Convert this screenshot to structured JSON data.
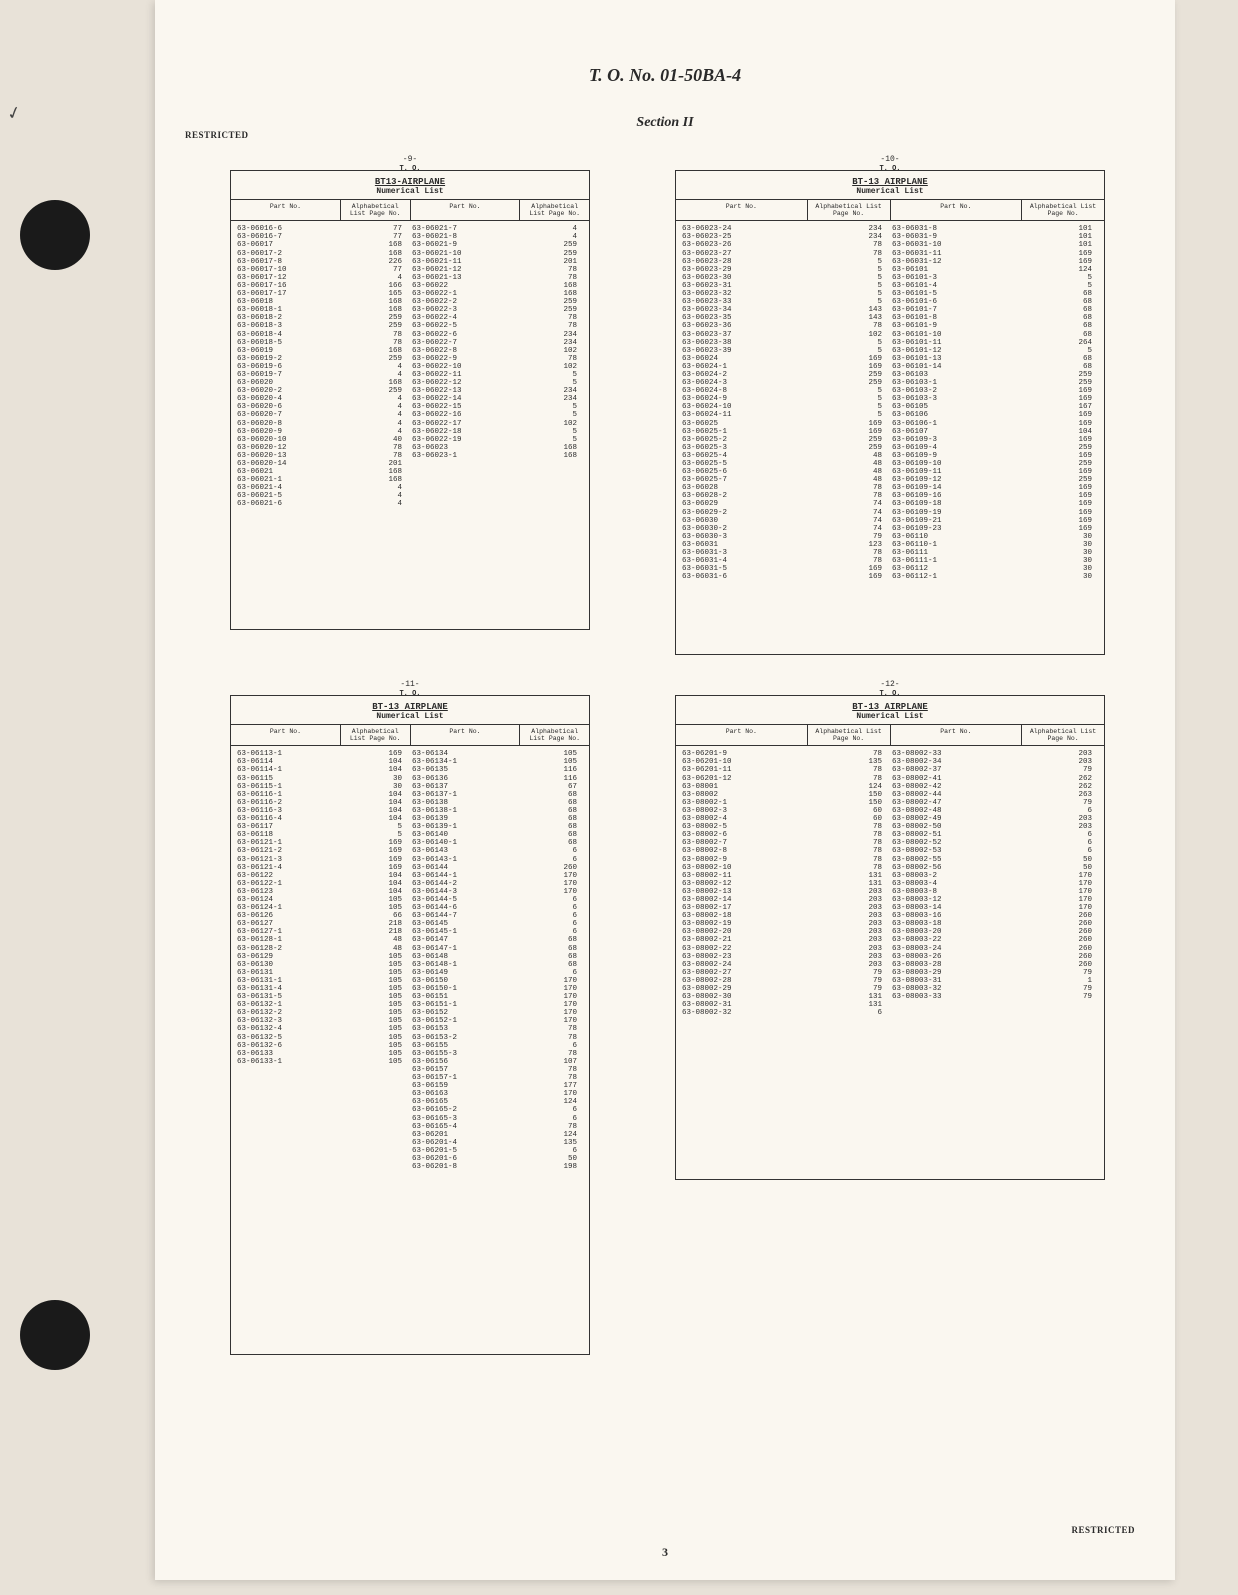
{
  "doc": {
    "title": "T. O. No. 01-50BA-4",
    "section": "Section II",
    "restricted": "RESTRICTED",
    "page_number": "3",
    "to_label": "T. O."
  },
  "colheads": {
    "part": "Part No.",
    "page": "Alphabetical\nList Page No."
  },
  "panels": {
    "tl": {
      "pagenum": "-9-",
      "title": "BT13-AIRPLANE",
      "subtitle": "Numerical List",
      "col1_parts": "63-06016-6\n63-06016-7\n63-06017\n63-06017-2\n63-06017-8\n63-06017-10\n63-06017-12\n63-06017-16\n63-06017-17\n63-06018\n63-06018-1\n63-06018-2\n63-06018-3\n63-06018-4\n63-06018-5\n63-06019\n63-06019-2\n63-06019-6\n63-06019-7\n63-06020\n63-06020-2\n63-06020-4\n63-06020-6\n63-06020-7\n63-06020-8\n63-06020-9\n63-06020-10\n63-06020-12\n63-06020-13\n63-06020-14\n63-06021\n63-06021-1\n63-06021-4\n63-06021-5\n63-06021-6",
      "col1_pages": "77\n77\n168\n168\n226\n77\n4\n166\n165\n168\n168\n259\n259\n78\n78\n168\n259\n4\n4\n168\n259\n4\n4\n4\n4\n4\n40\n78\n78\n201\n168\n168\n4\n4\n4",
      "col2_parts": "63-06021-7\n63-06021-8\n63-06021-9\n63-06021-10\n63-06021-11\n63-06021-12\n63-06021-13\n63-06022\n63-06022-1\n63-06022-2\n63-06022-3\n63-06022-4\n63-06022-5\n63-06022-6\n63-06022-7\n63-06022-8\n63-06022-9\n63-06022-10\n63-06022-11\n63-06022-12\n63-06022-13\n63-06022-14\n63-06022-15\n63-06022-16\n63-06022-17\n63-06022-18\n63-06022-19\n63-06023\n63-06023-1",
      "col2_pages": "4\n4\n259\n259\n201\n78\n78\n168\n168\n259\n259\n78\n78\n234\n234\n102\n78\n102\n5\n5\n234\n234\n5\n5\n102\n5\n5\n168\n168"
    },
    "tr": {
      "pagenum": "-10-",
      "title": "BT-13 AIRPLANE",
      "subtitle": "Numerical List",
      "col1_parts": "63-06023-24\n63-06023-25\n63-06023-26\n63-06023-27\n63-06023-28\n63-06023-29\n63-06023-30\n63-06023-31\n63-06023-32\n63-06023-33\n63-06023-34\n63-06023-35\n63-06023-36\n63-06023-37\n63-06023-38\n63-06023-39\n63-06024\n63-06024-1\n63-06024-2\n63-06024-3\n63-06024-8\n63-06024-9\n63-06024-10\n63-06024-11\n63-06025\n63-06025-1\n63-06025-2\n63-06025-3\n63-06025-4\n63-06025-5\n63-06025-6\n63-06025-7\n63-06028\n63-06028-2\n63-06029\n63-06029-2\n63-06030\n63-06030-2\n63-06030-3\n63-06031\n63-06031-3\n63-06031-4\n63-06031-5\n63-06031-6",
      "col1_pages": "234\n234\n78\n78\n5\n5\n5\n5\n5\n5\n143\n143\n78\n102\n5\n5\n169\n169\n259\n259\n5\n5\n5\n5\n169\n169\n259\n259\n48\n48\n48\n48\n78\n78\n74\n74\n74\n74\n79\n123\n78\n78\n169\n169",
      "col2_parts": "63-06031-8\n63-06031-9\n63-06031-10\n63-06031-11\n63-06031-12\n63-06101\n63-06101-3\n63-06101-4\n63-06101-5\n63-06101-6\n63-06101-7\n63-06101-8\n63-06101-9\n63-06101-10\n63-06101-11\n63-06101-12\n63-06101-13\n63-06101-14\n63-06103\n63-06103-1\n63-06103-2\n63-06103-3\n63-06105\n63-06106\n63-06106-1\n63-06107\n63-06109-3\n63-06109-4\n63-06109-9\n63-06109-10\n63-06109-11\n63-06109-12\n63-06109-14\n63-06109-16\n63-06109-18\n63-06109-19\n63-06109-21\n63-06109-23\n63-06110\n63-06110-1\n63-06111\n63-06111-1\n63-06112\n63-06112-1",
      "col2_pages": "101\n101\n101\n169\n169\n124\n5\n5\n68\n68\n68\n68\n68\n68\n264\n5\n68\n68\n259\n259\n169\n169\n167\n169\n169\n104\n169\n259\n169\n259\n169\n259\n169\n169\n169\n169\n169\n169\n30\n30\n30\n30\n30\n30"
    },
    "bl": {
      "pagenum": "-11-",
      "title": "BT-13 AIRPLANE",
      "subtitle": "Numerical List",
      "col1_parts": "63-06113-1\n63-06114\n63-06114-1\n63-06115\n63-06115-1\n63-06116-1\n63-06116-2\n63-06116-3\n63-06116-4\n63-06117\n63-06118\n63-06121-1\n63-06121-2\n63-06121-3\n63-06121-4\n63-06122\n63-06122-1\n63-06123\n63-06124\n63-06124-1\n63-06126\n63-06127\n63-06127-1\n63-06128-1\n63-06128-2\n63-06129\n63-06130\n63-06131\n63-06131-1\n63-06131-4\n63-06131-5\n63-06132-1\n63-06132-2\n63-06132-3\n63-06132-4\n63-06132-5\n63-06132-6\n63-06133\n63-06133-1",
      "col1_pages": "169\n104\n104\n30\n30\n104\n104\n104\n104\n5\n5\n169\n169\n169\n169\n104\n104\n104\n105\n105\n66\n218\n218\n48\n48\n105\n105\n105\n105\n105\n105\n105\n105\n105\n105\n105\n105\n105\n105",
      "col2_parts": "63-06134\n63-06134-1\n63-06135\n63-06136\n63-06137\n63-06137-1\n63-06138\n63-06138-1\n63-06139\n63-06139-1\n63-06140\n63-06140-1\n63-06143\n63-06143-1\n63-06144\n63-06144-1\n63-06144-2\n63-06144-3\n63-06144-5\n63-06144-6\n63-06144-7\n63-06145\n63-06145-1\n63-06147\n63-06147-1\n63-06148\n63-06148-1\n63-06149\n63-06150\n63-06150-1\n63-06151\n63-06151-1\n63-06152\n63-06152-1\n63-06153\n63-06153-2\n63-06155\n63-06155-3\n63-06156\n63-06157\n63-06157-1\n63-06159\n63-06163\n63-06165\n63-06165-2\n63-06165-3\n63-06165-4\n63-06201\n63-06201-4\n63-06201-5\n63-06201-6\n63-06201-8",
      "col2_pages": "105\n105\n116\n116\n67\n68\n68\n68\n68\n68\n68\n68\n6\n6\n260\n170\n170\n170\n6\n6\n6\n6\n6\n68\n68\n68\n68\n6\n170\n170\n170\n170\n170\n170\n78\n78\n6\n78\n107\n78\n78\n177\n170\n124\n6\n6\n78\n124\n135\n6\n50\n198"
    },
    "br": {
      "pagenum": "-12-",
      "title": "BT-13 AIRPLANE",
      "subtitle": "Numerical List",
      "col1_parts": "63-06201-9\n63-06201-10\n63-06201-11\n63-06201-12\n63-08001\n63-08002\n63-08002-1\n63-08002-3\n63-08002-4\n63-08002-5\n63-08002-6\n63-08002-7\n63-08002-8\n63-08002-9\n63-08002-10\n63-08002-11\n63-08002-12\n63-08002-13\n63-08002-14\n63-08002-17\n63-08002-18\n63-08002-19\n63-08002-20\n63-08002-21\n63-08002-22\n63-08002-23\n63-08002-24\n63-08002-27\n63-08002-28\n63-08002-29\n63-08002-30\n63-08002-31\n63-08002-32",
      "col1_pages": "78\n135\n78\n78\n124\n150\n150\n60\n60\n78\n78\n78\n78\n78\n78\n131\n131\n203\n203\n203\n203\n203\n203\n203\n203\n203\n203\n79\n79\n79\n131\n131\n6",
      "col2_parts": "63-08002-33\n63-08002-34\n63-08002-37\n63-08002-41\n63-08002-42\n63-08002-44\n63-08002-47\n63-08002-48\n63-08002-49\n63-08002-50\n63-08002-51\n63-08002-52\n63-08002-53\n63-08002-55\n63-08002-56\n63-08003-2\n63-08003-4\n63-08003-8\n63-08003-12\n63-08003-14\n63-08003-16\n63-08003-18\n63-08003-20\n63-08003-22\n63-08003-24\n63-08003-26\n63-08003-28\n63-08003-29\n63-08003-31\n63-08003-32\n63-08003-33",
      "col2_pages": "203\n203\n79\n262\n262\n263\n79\n6\n203\n203\n6\n6\n6\n50\n50\n170\n170\n170\n170\n170\n260\n260\n260\n260\n260\n260\n260\n79\n1\n79\n79"
    }
  }
}
